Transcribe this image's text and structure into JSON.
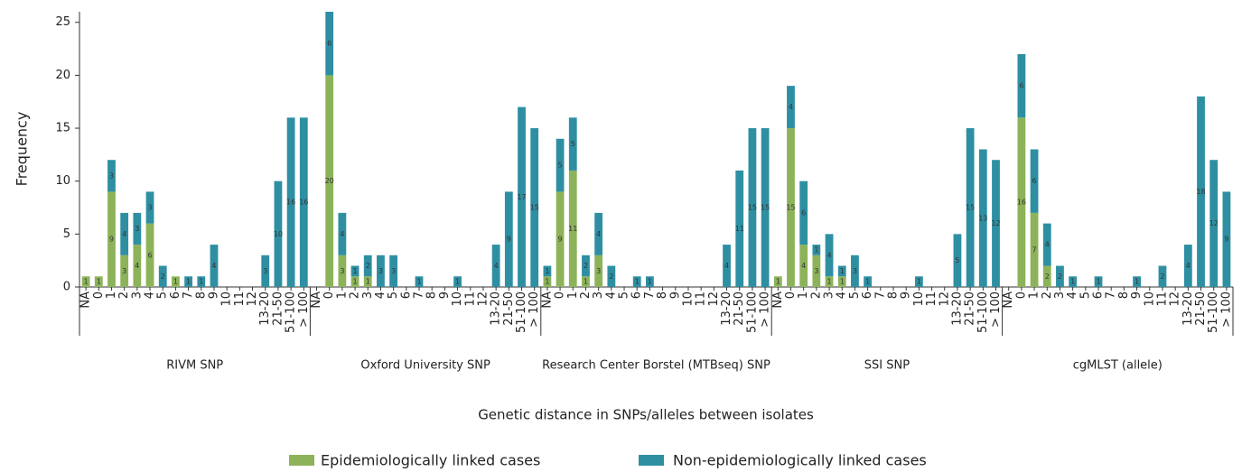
{
  "chart_data": {
    "type": "bar",
    "stacked": true,
    "ylabel": "Frequency",
    "xlabel": "Genetic distance in SNPs/alleles between isolates",
    "categories": [
      "NA",
      "0",
      "1",
      "2",
      "3",
      "4",
      "5",
      "6",
      "7",
      "8",
      "9",
      "10",
      "11",
      "12",
      "13-20",
      "21-50",
      "51-100",
      "> 100"
    ],
    "groups": [
      "RIVM SNP",
      "Oxford University SNP",
      "Research Center Borstel (MTBseq) SNP",
      "SSI SNP",
      "cgMLST (allele)"
    ],
    "series": [
      {
        "name": "Epidemiologically linked cases",
        "color": "#8db35a",
        "values": [
          [
            1,
            1,
            9,
            3,
            4,
            6,
            0,
            1,
            0,
            0,
            0,
            0,
            0,
            0,
            0,
            0,
            0,
            0
          ],
          [
            0,
            20,
            3,
            1,
            1,
            0,
            0,
            0,
            0,
            0,
            0,
            0,
            0,
            0,
            0,
            0,
            0,
            0
          ],
          [
            1,
            9,
            11,
            1,
            3,
            0,
            0,
            0,
            0,
            0,
            0,
            0,
            0,
            0,
            0,
            0,
            0,
            0
          ],
          [
            1,
            15,
            4,
            3,
            1,
            1,
            0,
            0,
            0,
            0,
            0,
            0,
            0,
            0,
            0,
            0,
            0,
            0
          ],
          [
            0,
            16,
            7,
            2,
            0,
            0,
            0,
            0,
            0,
            0,
            0,
            0,
            0,
            0,
            0,
            0,
            0,
            0
          ]
        ]
      },
      {
        "name": "Non-epidemiologically linked cases",
        "color": "#2e8fa3",
        "values": [
          [
            0,
            0,
            3,
            4,
            3,
            3,
            2,
            0,
            1,
            1,
            4,
            0,
            0,
            0,
            3,
            10,
            16,
            16
          ],
          [
            0,
            6,
            4,
            1,
            2,
            3,
            3,
            0,
            1,
            0,
            0,
            1,
            0,
            0,
            4,
            9,
            17,
            15
          ],
          [
            1,
            5,
            5,
            2,
            4,
            2,
            0,
            1,
            1,
            0,
            0,
            0,
            0,
            0,
            4,
            11,
            15,
            15
          ],
          [
            0,
            4,
            6,
            1,
            4,
            1,
            3,
            1,
            0,
            0,
            0,
            1,
            0,
            0,
            5,
            15,
            13,
            12
          ],
          [
            0,
            6,
            6,
            4,
            2,
            1,
            0,
            1,
            0,
            0,
            1,
            0,
            2,
            0,
            4,
            18,
            12,
            9
          ]
        ]
      }
    ],
    "ylim": [
      0,
      26
    ],
    "yticks": [
      0,
      5,
      10,
      15,
      20,
      25
    ]
  }
}
